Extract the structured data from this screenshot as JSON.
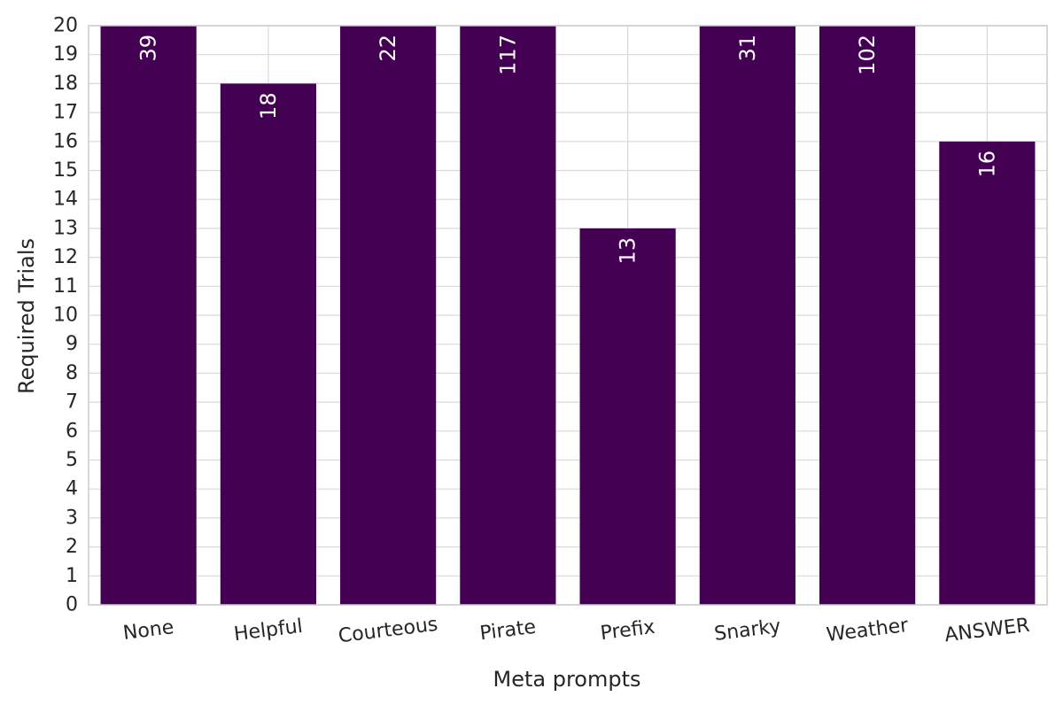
{
  "chart_data": {
    "type": "bar",
    "title": "",
    "xlabel": "Meta prompts",
    "ylabel": "Required Trials",
    "categories": [
      "None",
      "Helpful",
      "Courteous",
      "Pirate",
      "Prefix",
      "Snarky",
      "Weather",
      "ANSWER"
    ],
    "values": [
      39,
      18,
      22,
      117,
      13,
      31,
      102,
      16
    ],
    "data_labels": [
      "39",
      "18",
      "22",
      "117",
      "13",
      "31",
      "102",
      "16"
    ],
    "ylim": [
      0,
      20
    ],
    "yticks": [
      0,
      1,
      2,
      3,
      4,
      5,
      6,
      7,
      8,
      9,
      10,
      11,
      12,
      13,
      14,
      15,
      16,
      17,
      18,
      19,
      20
    ],
    "grid": true,
    "bar_color": "#440154",
    "grid_color": "#d9d9d9",
    "spine_color": "#cccccc"
  }
}
